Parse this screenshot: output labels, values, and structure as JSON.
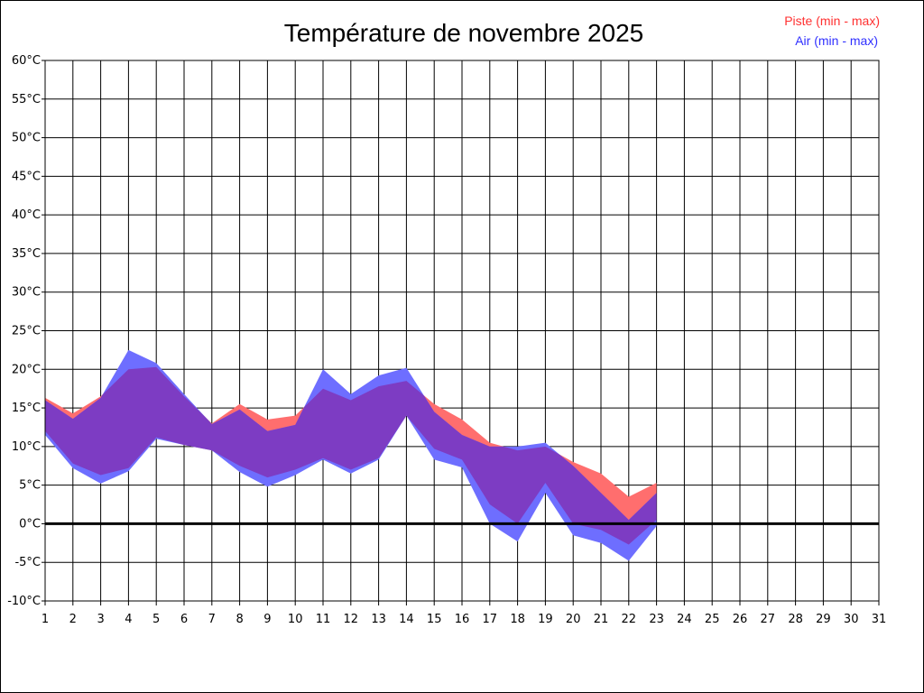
{
  "chart_data": {
    "type": "area",
    "title": "Température de novembre 2025",
    "legend": {
      "placement": "top-right"
    },
    "grid": true,
    "ylim": [
      -10,
      60
    ],
    "xlim": [
      1,
      31
    ],
    "y_ticks": [
      "60°C",
      "55°C",
      "50°C",
      "45°C",
      "40°C",
      "35°C",
      "30°C",
      "25°C",
      "20°C",
      "15°C",
      "10°C",
      "5°C",
      "0°C",
      "-5°C",
      "-10°C"
    ],
    "y_tick_values": [
      60,
      55,
      50,
      45,
      40,
      35,
      30,
      25,
      20,
      15,
      10,
      5,
      0,
      -5,
      -10
    ],
    "x_ticks": [
      "1",
      "2",
      "3",
      "4",
      "5",
      "6",
      "7",
      "8",
      "9",
      "10",
      "11",
      "12",
      "13",
      "14",
      "15",
      "16",
      "17",
      "18",
      "19",
      "20",
      "21",
      "22",
      "23",
      "24",
      "25",
      "26",
      "27",
      "28",
      "29",
      "30",
      "31"
    ],
    "x": [
      1,
      2,
      3,
      4,
      5,
      6,
      7,
      8,
      9,
      10,
      11,
      12,
      13,
      14,
      15,
      16,
      17,
      18,
      19,
      20,
      21,
      22,
      23
    ],
    "series": [
      {
        "name": "Piste (min - max)",
        "color": "#ff6e6e",
        "min": [
          12.0,
          7.8,
          6.3,
          7.2,
          11.2,
          10.2,
          9.5,
          7.5,
          6.0,
          7.0,
          8.5,
          7.0,
          8.5,
          14.0,
          9.7,
          8.3,
          2.5,
          0.0,
          5.3,
          0.0,
          -0.8,
          -2.7,
          0.5
        ],
        "max": [
          16.3,
          14.3,
          16.5,
          20.0,
          20.3,
          16.5,
          13.0,
          15.5,
          13.5,
          14.0,
          17.5,
          16.0,
          17.8,
          18.5,
          15.5,
          13.5,
          10.5,
          9.5,
          10.0,
          8.0,
          6.5,
          3.5,
          5.3
        ]
      },
      {
        "name": "Air (min - max)",
        "color": "#6e6eff",
        "min": [
          11.5,
          7.2,
          5.2,
          6.8,
          11.0,
          10.2,
          9.5,
          6.7,
          4.8,
          6.3,
          8.3,
          6.5,
          8.3,
          14.0,
          8.3,
          7.3,
          0.0,
          -2.3,
          4.0,
          -1.5,
          -2.5,
          -4.8,
          -0.3
        ],
        "max": [
          16.0,
          13.6,
          16.3,
          22.5,
          20.8,
          16.8,
          12.9,
          14.8,
          12.0,
          12.8,
          20.0,
          16.8,
          19.2,
          20.2,
          14.5,
          11.5,
          10.0,
          10.0,
          10.5,
          7.5,
          4.0,
          0.5,
          4.0
        ]
      }
    ]
  },
  "colors": {
    "overlap": "#7d3cc3",
    "grid": "#000000",
    "zero_line": "#000000"
  }
}
